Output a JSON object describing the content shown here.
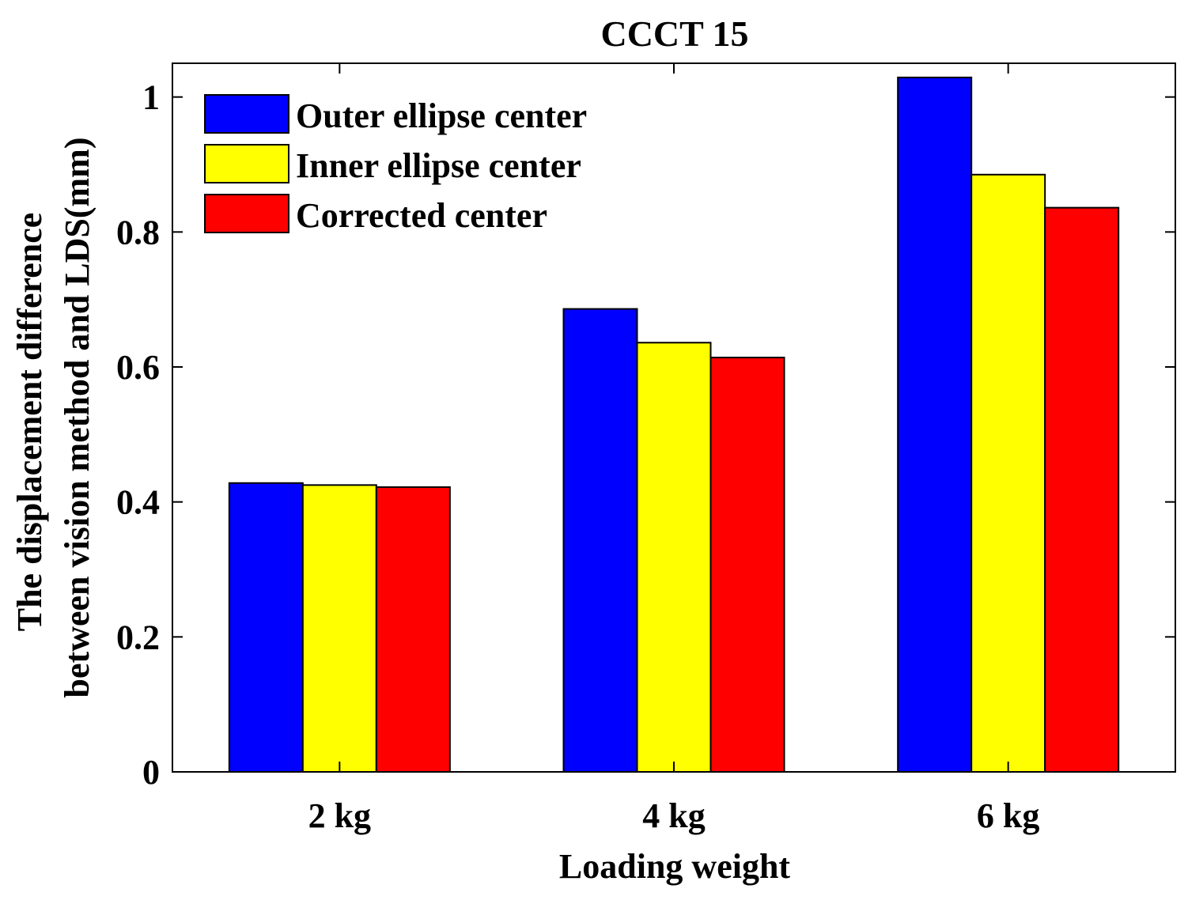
{
  "chart_data": {
    "type": "bar",
    "title": "CCCT 15",
    "xlabel": "Loading weight",
    "ylabel": [
      "The displacement difference",
      "between vision method and LDS(mm)"
    ],
    "categories": [
      "2 kg",
      "4 kg",
      "6 kg"
    ],
    "series": [
      {
        "name": "Outer ellipse center",
        "color": "#0000ff",
        "values": [
          0.428,
          0.686,
          1.029
        ]
      },
      {
        "name": "Inner ellipse center",
        "color": "#ffff00",
        "values": [
          0.425,
          0.636,
          0.885
        ]
      },
      {
        "name": "Corrected center",
        "color": "#ff0000",
        "values": [
          0.422,
          0.614,
          0.836
        ]
      }
    ],
    "ylim": [
      0,
      1.05
    ],
    "yticks": [
      0,
      0.2,
      0.4,
      0.6,
      0.8,
      1
    ],
    "ytick_labels": [
      "0",
      "0.2",
      "0.4",
      "0.6",
      "0.8",
      "1"
    ],
    "grid": false,
    "legend_position": "top-left"
  }
}
